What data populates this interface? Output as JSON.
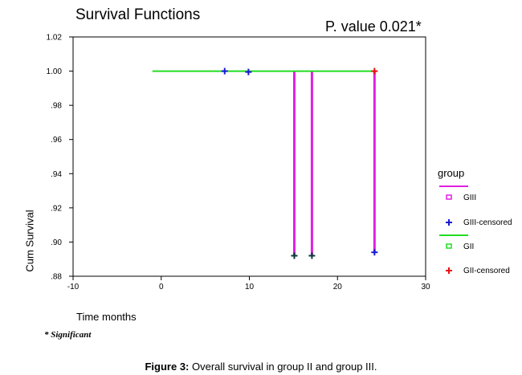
{
  "chart_data": {
    "type": "line",
    "subtype": "kaplan-meier-survival",
    "title": "Survival Functions",
    "annotation": "P. value 0.021*",
    "xlabel": "Time months",
    "ylabel": "Cum Survival",
    "xlim": [
      -10,
      30
    ],
    "ylim": [
      0.88,
      1.02
    ],
    "x_ticks": [
      -10,
      0,
      10,
      20,
      30
    ],
    "x_tick_labels": [
      "-10",
      "0",
      "10",
      "20",
      "30"
    ],
    "y_ticks": [
      0.88,
      0.9,
      0.92,
      0.94,
      0.96,
      0.98,
      1.0,
      1.02
    ],
    "y_tick_labels": [
      ".88",
      ".90",
      ".92",
      ".94",
      ".96",
      ".98",
      "1.00",
      "1.02"
    ],
    "legend_title": "group",
    "legend_position": "right",
    "legend": [
      {
        "key": "GIII",
        "label": "GIII",
        "kind": "line",
        "color": "#e020e0"
      },
      {
        "key": "GIII-censored",
        "label": "GIII-censored",
        "kind": "censor",
        "color": "#1a1ad0"
      },
      {
        "key": "GII",
        "label": "GII",
        "kind": "line",
        "color": "#22dd22"
      },
      {
        "key": "GII-censored",
        "label": "GII-censored",
        "kind": "censor",
        "color": "#e81010"
      }
    ],
    "series": [
      {
        "name": "GII",
        "color": "#22dd22",
        "steps": [
          {
            "x": -1,
            "y": 1.0
          },
          {
            "x": 24.2,
            "y": 1.0
          }
        ],
        "censored": [
          {
            "x": 24.2,
            "y": 1.0
          }
        ]
      },
      {
        "name": "GIII",
        "color": "#e020e0",
        "drops": [
          {
            "x": 15.1,
            "from": 1.0,
            "to": 0.892
          },
          {
            "x": 17.1,
            "from": 1.0,
            "to": 0.892
          },
          {
            "x": 24.2,
            "from": 1.0,
            "to": 0.894
          }
        ],
        "censored": [
          {
            "x": 7.2,
            "y": 1.0
          },
          {
            "x": 9.9,
            "y": 0.9995
          },
          {
            "x": 15.1,
            "y": 0.892
          },
          {
            "x": 17.1,
            "y": 0.892
          },
          {
            "x": 24.2,
            "y": 0.894
          }
        ],
        "censored_colors": [
          "#1a1ad0",
          "#1a1ad0",
          "#0a3a3a",
          "#0a3a3a",
          "#1a1ad0"
        ]
      }
    ]
  },
  "footnote": "* Significant",
  "caption": {
    "label": "Figure 3:",
    "text": " Overall survival in group II and group III."
  }
}
